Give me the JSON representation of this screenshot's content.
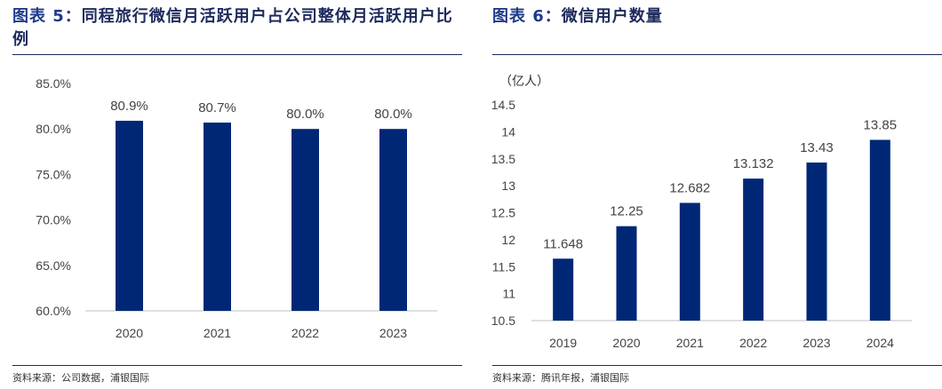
{
  "left": {
    "title_label": "图表 5：",
    "title_text": "同程旅行微信月活跃用户占公司整体月活跃用户比例",
    "source": "资料来源：公司数据，浦银国际"
  },
  "right": {
    "title_label": "图表 6：",
    "title_text": "微信用户数量",
    "source": "资料来源：腾讯年报，浦银国际"
  },
  "chart_data": [
    {
      "type": "bar",
      "title": "同程旅行微信月活跃用户占公司整体月活跃用户比例",
      "categories": [
        "2020",
        "2021",
        "2022",
        "2023"
      ],
      "values": [
        80.9,
        80.7,
        80.0,
        80.0
      ],
      "value_labels": [
        "80.9%",
        "80.7%",
        "80.0%",
        "80.0%"
      ],
      "ylim": [
        60,
        85
      ],
      "yticks": [
        60,
        65,
        70,
        75,
        80,
        85
      ],
      "ytick_labels": [
        "60.0%",
        "65.0%",
        "70.0%",
        "75.0%",
        "80.0%",
        "85.0%"
      ],
      "xlabel": "",
      "ylabel": "",
      "grid": false,
      "color": "#002776"
    },
    {
      "type": "bar",
      "title": "微信用户数量",
      "unit_label": "（亿人）",
      "categories": [
        "2019",
        "2020",
        "2021",
        "2022",
        "2023",
        "2024"
      ],
      "values": [
        11.648,
        12.25,
        12.682,
        13.132,
        13.43,
        13.85
      ],
      "value_labels": [
        "11.648",
        "12.25",
        "12.682",
        "13.132",
        "13.43",
        "13.85"
      ],
      "ylim": [
        10.5,
        14.5
      ],
      "yticks": [
        10.5,
        11,
        11.5,
        12,
        12.5,
        13,
        13.5,
        14,
        14.5
      ],
      "ytick_labels": [
        "10.5",
        "11",
        "11.5",
        "12",
        "12.5",
        "13",
        "13.5",
        "14",
        "14.5"
      ],
      "xlabel": "",
      "ylabel": "",
      "grid": false,
      "color": "#002776"
    }
  ]
}
